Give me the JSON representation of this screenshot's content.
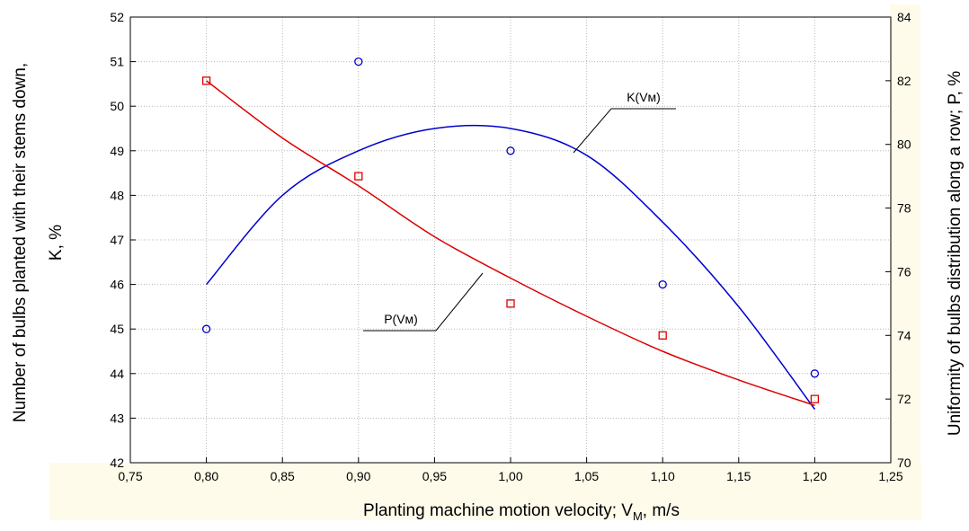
{
  "chart_data": {
    "type": "scatter",
    "xlabel": "Planting machine motion velocity; V",
    "xlabel_subscript": "M",
    "xlabel_unit": ", m/s",
    "ylabel_left_line1": "Number of bulbs planted with their stems down,",
    "ylabel_left_line2": "K, %",
    "ylabel_right": "Uniformity of bulbs distribution along a row; P, %",
    "xlim": [
      0.75,
      1.25
    ],
    "ylim_left": [
      42,
      52
    ],
    "ylim_right": [
      70,
      84
    ],
    "x_ticks": [
      "0,75",
      "0,80",
      "0,85",
      "0,90",
      "0,95",
      "1,00",
      "1,05",
      "1,10",
      "1,15",
      "1,20",
      "1,25"
    ],
    "y_left_ticks": [
      "42",
      "43",
      "44",
      "45",
      "46",
      "47",
      "48",
      "49",
      "50",
      "51",
      "52"
    ],
    "y_right_ticks": [
      "70",
      "72",
      "74",
      "76",
      "78",
      "80",
      "82",
      "84"
    ],
    "grid": true,
    "series": [
      {
        "name": "K(Vм)",
        "axis": "left",
        "color": "#0000cc",
        "marker": "circle",
        "points": [
          [
            0.8,
            45.0
          ],
          [
            0.9,
            51.0
          ],
          [
            1.0,
            49.0
          ],
          [
            1.1,
            46.0
          ],
          [
            1.2,
            44.0
          ]
        ],
        "fit": [
          [
            0.8,
            46.0
          ],
          [
            0.85,
            48.0
          ],
          [
            0.9,
            49.0
          ],
          [
            0.95,
            49.5
          ],
          [
            1.0,
            49.5
          ],
          [
            1.05,
            48.9
          ],
          [
            1.1,
            47.4
          ],
          [
            1.15,
            45.5
          ],
          [
            1.2,
            43.2
          ]
        ]
      },
      {
        "name": "P(Vм)",
        "axis": "right",
        "color": "#dd0000",
        "marker": "square",
        "points": [
          [
            0.8,
            82.0
          ],
          [
            0.9,
            79.0
          ],
          [
            1.0,
            75.0
          ],
          [
            1.1,
            74.0
          ],
          [
            1.2,
            72.0
          ]
        ],
        "fit": [
          [
            0.8,
            82.0
          ],
          [
            0.85,
            80.2
          ],
          [
            0.9,
            78.7
          ],
          [
            0.95,
            77.1
          ],
          [
            1.0,
            75.8
          ],
          [
            1.05,
            74.6
          ],
          [
            1.1,
            73.5
          ],
          [
            1.15,
            72.6
          ],
          [
            1.2,
            71.8
          ]
        ]
      }
    ]
  }
}
